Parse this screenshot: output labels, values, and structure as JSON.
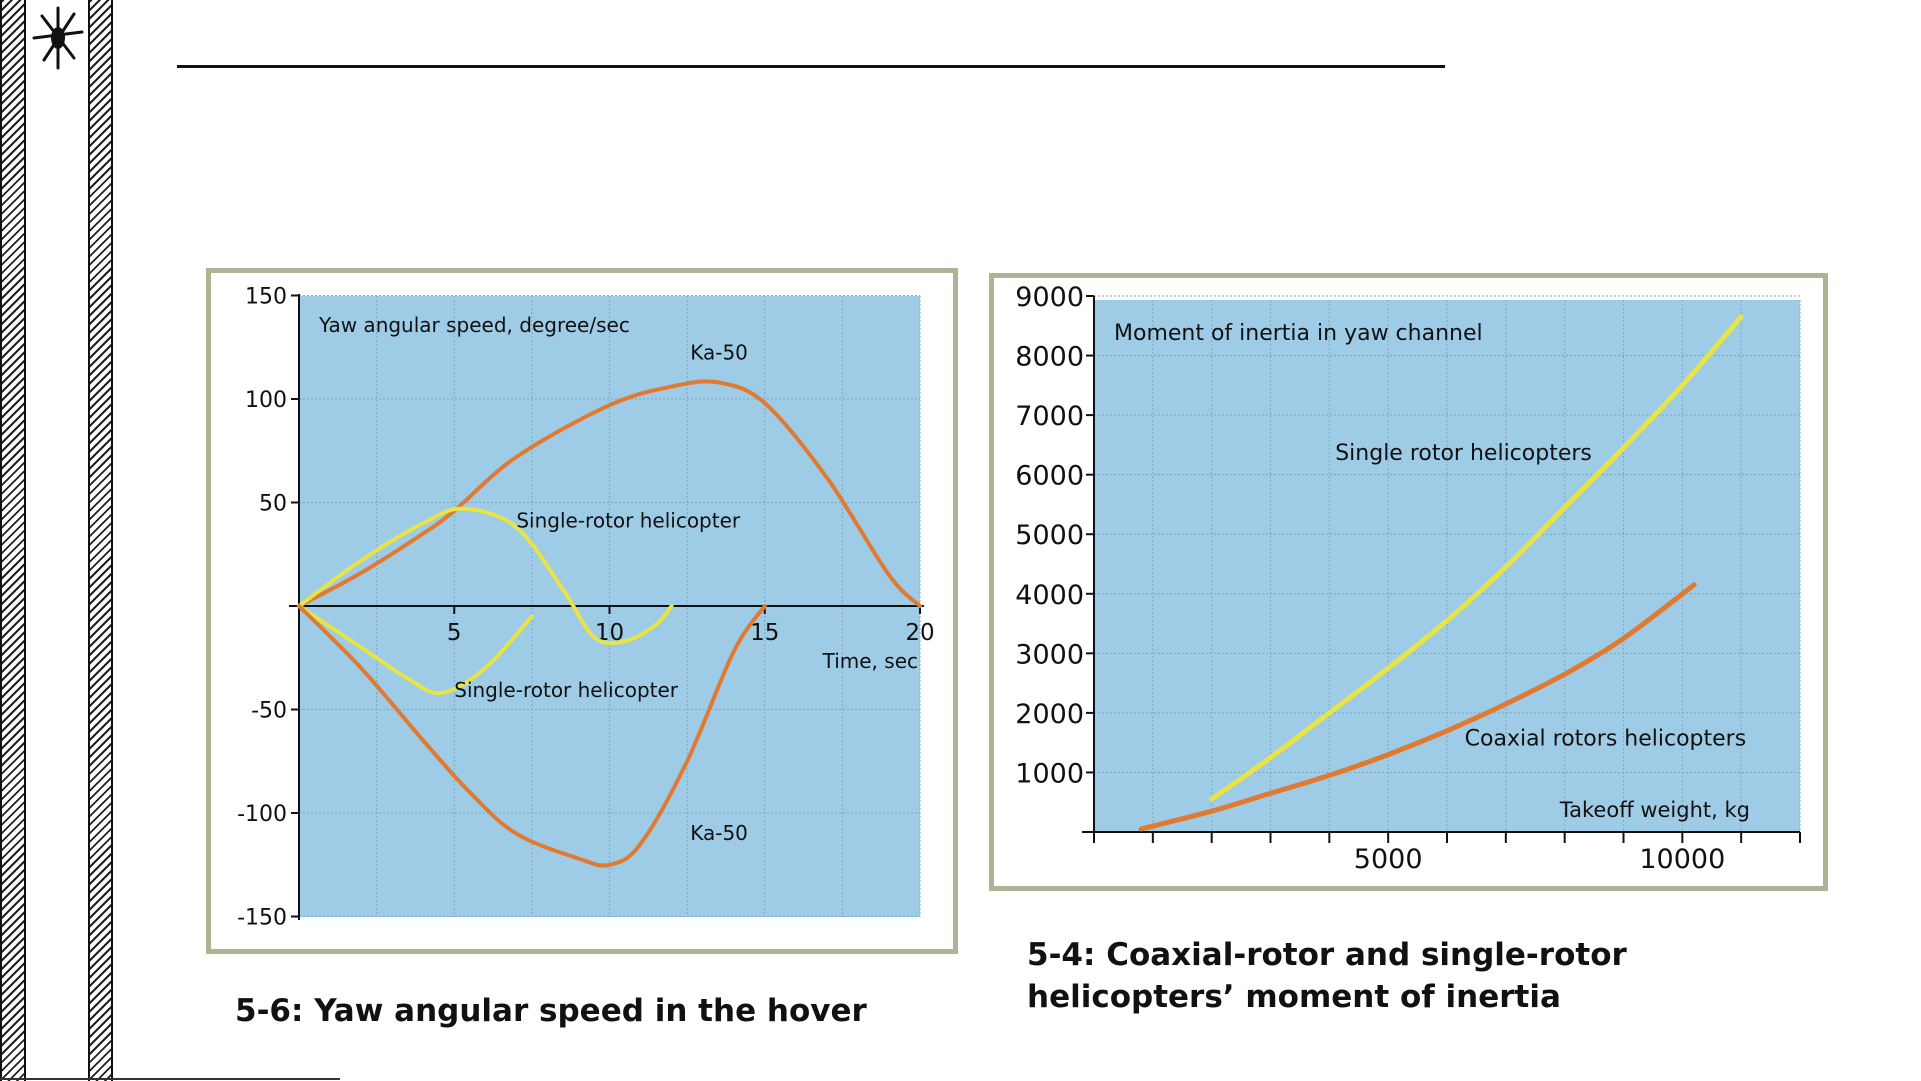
{
  "colors": {
    "plot_bg": "#9ecbe5",
    "frame": "#aab596",
    "ka50": "#e07a30",
    "single": "#e9e446",
    "grid": "#7fa8bd",
    "axis": "#111111"
  },
  "icons": {
    "logo": "helicopter-logo-icon"
  },
  "captions": {
    "left": "5-6: Yaw angular speed in the hover",
    "right": "5-4: Coaxial-rotor and single-rotor helicopters’ moment of inertia"
  },
  "chart_data": [
    {
      "type": "line",
      "title": "Yaw angular speed, degree/sec",
      "xlabel": "Time, sec",
      "ylabel": "Yaw angular speed, degree/sec",
      "xlim": [
        0,
        20
      ],
      "ylim": [
        -150,
        150
      ],
      "x_ticks": [
        5,
        10,
        15,
        20
      ],
      "y_ticks": [
        150,
        100,
        50,
        -50,
        -100,
        -150
      ],
      "x_tick_labels": [
        "5",
        "10",
        "15",
        "20"
      ],
      "y_tick_labels": [
        "150",
        "100",
        "50",
        "-50",
        "-100",
        "-150"
      ],
      "grid": true,
      "series": [
        {
          "name": "Ka-50",
          "color": "#e07a30",
          "x": [
            0,
            2,
            4,
            5,
            7,
            10,
            12,
            13.5,
            15,
            17,
            19,
            20
          ],
          "y": [
            0,
            16,
            35,
            46,
            72,
            97,
            106,
            108,
            98,
            62,
            15,
            0
          ]
        },
        {
          "name": "Single-rotor helicopter",
          "color": "#e9e446",
          "x": [
            0,
            2,
            4,
            5.3,
            7,
            8.5,
            9.5,
            10.5,
            11.5,
            12
          ],
          "y": [
            0,
            22,
            40,
            47,
            38,
            8,
            -15,
            -17,
            -9,
            0
          ]
        },
        {
          "name": "Single-rotor helicopter",
          "color": "#e9e446",
          "x": [
            0,
            2,
            3.5,
            4.6,
            6,
            7.5
          ],
          "y": [
            0,
            -20,
            -35,
            -42,
            -30,
            -5
          ]
        },
        {
          "name": "Ka-50",
          "color": "#e07a30",
          "x": [
            0,
            2,
            4,
            5.5,
            7,
            9,
            10,
            11,
            12.5,
            14,
            15
          ],
          "y": [
            0,
            -30,
            -65,
            -90,
            -110,
            -122,
            -125,
            -115,
            -75,
            -22,
            0
          ]
        }
      ],
      "annotations": [
        {
          "text": "Ka-50",
          "x": 12.6,
          "y": 119
        },
        {
          "text": "Single-rotor helicopter",
          "x": 7.0,
          "y": 38
        },
        {
          "text": "Single-rotor helicopter",
          "x": 5.0,
          "y": -44
        },
        {
          "text": "Ka-50",
          "x": 12.6,
          "y": -113
        }
      ]
    },
    {
      "type": "line",
      "title": "Moment of inertia in yaw channel",
      "xlabel": "Takeoff weight, kg",
      "ylabel": "Moment of inertia in yaw channel",
      "xlim": [
        0,
        12000
      ],
      "ylim": [
        0,
        9000
      ],
      "x_ticks": [
        5000,
        10000
      ],
      "x_minor_ticks": [
        0,
        1000,
        2000,
        3000,
        4000,
        5000,
        6000,
        7000,
        8000,
        9000,
        10000,
        11000,
        12000
      ],
      "y_ticks": [
        1000,
        2000,
        3000,
        4000,
        5000,
        6000,
        7000,
        8000,
        9000
      ],
      "x_tick_labels": [
        "5000",
        "10000"
      ],
      "y_tick_labels": [
        "1000",
        "2000",
        "3000",
        "4000",
        "5000",
        "6000",
        "7000",
        "8000",
        "9000"
      ],
      "grid": true,
      "series": [
        {
          "name": "Single rotor helicopters",
          "color": "#e9e446",
          "x": [
            2000,
            3000,
            4000,
            5000,
            6000,
            7000,
            8000,
            9000,
            10000,
            11000
          ],
          "y": [
            550,
            1250,
            2000,
            2750,
            3550,
            4450,
            5450,
            6450,
            7500,
            8650
          ]
        },
        {
          "name": "Coaxial rotors helicopters",
          "color": "#e07a30",
          "x": [
            800,
            2000,
            3000,
            4000,
            5000,
            6000,
            7000,
            8000,
            9000,
            10200
          ],
          "y": [
            50,
            350,
            650,
            950,
            1300,
            1700,
            2150,
            2650,
            3250,
            4150
          ]
        }
      ],
      "annotations": [
        {
          "text": "Single rotor helicopters",
          "x": 4100,
          "y": 6250
        },
        {
          "text": "Coaxial rotors helicopters",
          "x": 6300,
          "y": 1450
        }
      ]
    }
  ]
}
